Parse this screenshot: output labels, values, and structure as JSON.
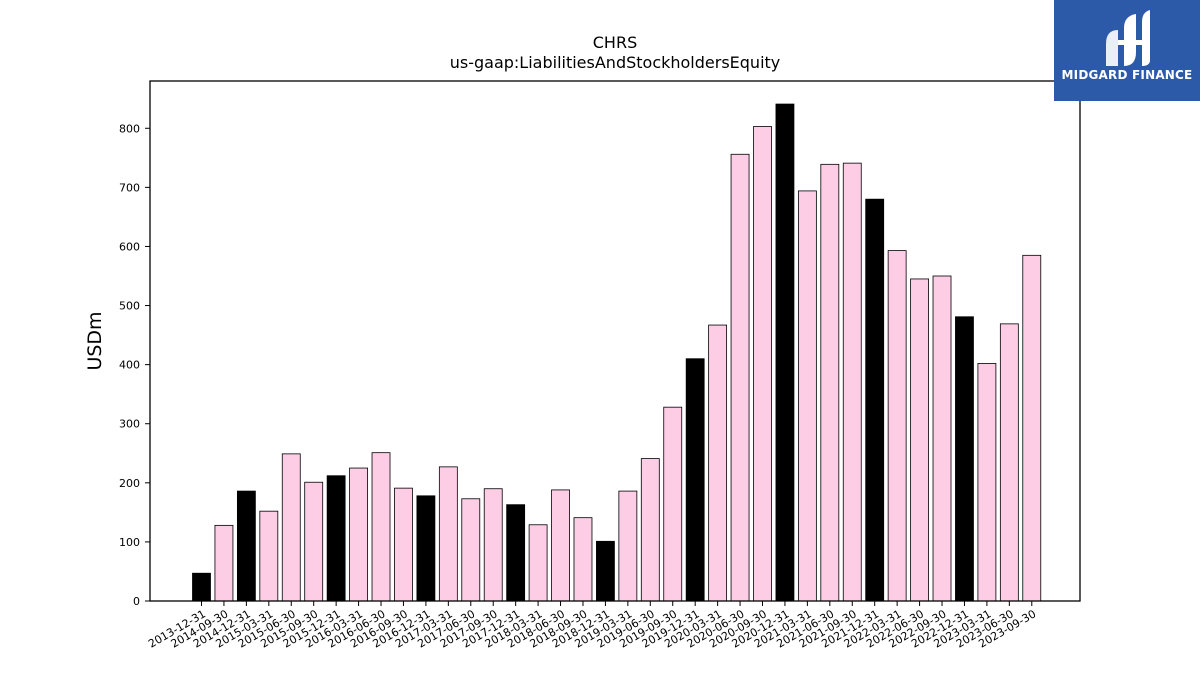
{
  "brand": {
    "name": "MIDGARD FINANCE",
    "color": "#2c5aa8",
    "icon": "midgard-m-logo-icon"
  },
  "chart_data": {
    "type": "bar",
    "title": "CHRS",
    "subtitle": "us-gaap:LiabilitiesAndStockholdersEquity",
    "xlabel": "",
    "ylabel": "USDm",
    "ylim": [
      0,
      880
    ],
    "yticks": [
      0,
      100,
      200,
      300,
      400,
      500,
      600,
      700,
      800
    ],
    "grid": false,
    "colors": {
      "annual": "#000000",
      "quarterly": "#fccde5",
      "edge": "#000000"
    },
    "categories": [
      "2013-12-31",
      "2014-09-30",
      "2014-12-31",
      "2015-03-31",
      "2015-06-30",
      "2015-09-30",
      "2015-12-31",
      "2016-03-31",
      "2016-06-30",
      "2016-09-30",
      "2016-12-31",
      "2017-03-31",
      "2017-06-30",
      "2017-09-30",
      "2017-12-31",
      "2018-03-31",
      "2018-06-30",
      "2018-09-30",
      "2018-12-31",
      "2019-03-31",
      "2019-06-30",
      "2019-09-30",
      "2019-12-31",
      "2020-03-31",
      "2020-06-30",
      "2020-09-30",
      "2020-12-31",
      "2021-03-31",
      "2021-06-30",
      "2021-09-30",
      "2021-12-31",
      "2022-03-31",
      "2022-06-30",
      "2022-09-30",
      "2022-12-31",
      "2023-03-31",
      "2023-06-30",
      "2023-09-30"
    ],
    "values": [
      47,
      128,
      186,
      152,
      249,
      201,
      212,
      225,
      251,
      191,
      178,
      227,
      173,
      190,
      163,
      129,
      188,
      141,
      101,
      186,
      241,
      328,
      410,
      467,
      756,
      803,
      841,
      694,
      739,
      741,
      680,
      593,
      545,
      550,
      481,
      402,
      469,
      585
    ],
    "annual": [
      true,
      false,
      true,
      false,
      false,
      false,
      true,
      false,
      false,
      false,
      true,
      false,
      false,
      false,
      true,
      false,
      false,
      false,
      true,
      false,
      false,
      false,
      true,
      false,
      false,
      false,
      true,
      false,
      false,
      false,
      true,
      false,
      false,
      false,
      true,
      false,
      false,
      false
    ]
  }
}
